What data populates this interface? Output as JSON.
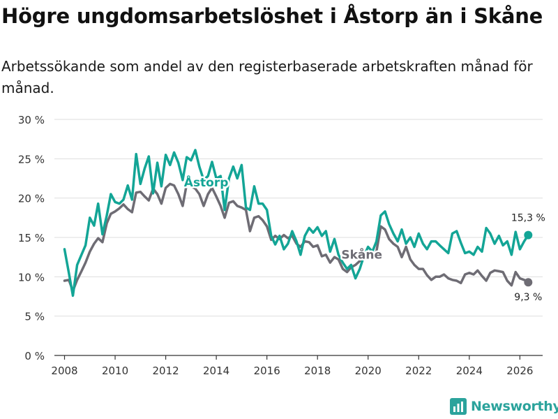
{
  "header": {
    "title": "Högre ungdomsarbetslöshet i Åstorp än i Skåne",
    "subtitle": "Arbetssökande som andel av den registerbaserade arbetskraften månad för månad."
  },
  "brand": {
    "name": "Newsworthy"
  },
  "colors": {
    "astorp": "#13a596",
    "skane": "#6e6c74",
    "grid": "#dedede",
    "axis": "#333333"
  },
  "chart_data": {
    "type": "line",
    "title": "Högre ungdomsarbetslöshet i Åstorp än i Skåne",
    "xlabel": "",
    "ylabel": "",
    "xlim": [
      2007.6,
      2026.9
    ],
    "ylim": [
      0,
      30
    ],
    "x_ticks": [
      2008,
      2010,
      2012,
      2014,
      2016,
      2018,
      2020,
      2022,
      2024,
      2026
    ],
    "y_ticks": [
      0,
      5,
      10,
      15,
      20,
      25,
      30
    ],
    "y_tick_labels": [
      "0 %",
      "5 %",
      "10 %",
      "15 %",
      "20 %",
      "25 %",
      "30 %"
    ],
    "grid": true,
    "series": [
      {
        "name": "Åstorp",
        "label": "Åstorp",
        "label_at": [
          2013.6,
          21.5
        ],
        "end_label": "15,3 %",
        "points": [
          [
            2008.0,
            13.5
          ],
          [
            2008.17,
            10.5
          ],
          [
            2008.33,
            7.6
          ],
          [
            2008.5,
            11.5
          ],
          [
            2008.67,
            12.8
          ],
          [
            2008.83,
            14.0
          ],
          [
            2009.0,
            17.5
          ],
          [
            2009.17,
            16.5
          ],
          [
            2009.33,
            19.3
          ],
          [
            2009.5,
            15.4
          ],
          [
            2009.67,
            17.8
          ],
          [
            2009.83,
            20.5
          ],
          [
            2010.0,
            19.5
          ],
          [
            2010.17,
            19.3
          ],
          [
            2010.33,
            19.8
          ],
          [
            2010.5,
            21.6
          ],
          [
            2010.67,
            19.8
          ],
          [
            2010.83,
            25.6
          ],
          [
            2011.0,
            21.8
          ],
          [
            2011.17,
            23.8
          ],
          [
            2011.33,
            25.3
          ],
          [
            2011.5,
            20.6
          ],
          [
            2011.67,
            24.5
          ],
          [
            2011.83,
            21.5
          ],
          [
            2012.0,
            25.5
          ],
          [
            2012.17,
            24.2
          ],
          [
            2012.33,
            25.8
          ],
          [
            2012.5,
            24.5
          ],
          [
            2012.67,
            22.3
          ],
          [
            2012.83,
            25.2
          ],
          [
            2013.0,
            24.8
          ],
          [
            2013.17,
            26.1
          ],
          [
            2013.33,
            24.0
          ],
          [
            2013.5,
            22.3
          ],
          [
            2013.67,
            22.8
          ],
          [
            2013.83,
            24.6
          ],
          [
            2014.0,
            22.5
          ],
          [
            2014.17,
            22.8
          ],
          [
            2014.33,
            18.5
          ],
          [
            2014.5,
            22.5
          ],
          [
            2014.67,
            24.0
          ],
          [
            2014.83,
            22.5
          ],
          [
            2015.0,
            24.2
          ],
          [
            2015.17,
            18.8
          ],
          [
            2015.33,
            18.5
          ],
          [
            2015.5,
            21.5
          ],
          [
            2015.67,
            19.3
          ],
          [
            2015.83,
            19.3
          ],
          [
            2016.0,
            18.5
          ],
          [
            2016.17,
            15.2
          ],
          [
            2016.33,
            14.1
          ],
          [
            2016.5,
            15.2
          ],
          [
            2016.67,
            13.5
          ],
          [
            2016.83,
            14.2
          ],
          [
            2017.0,
            15.8
          ],
          [
            2017.17,
            14.5
          ],
          [
            2017.33,
            12.8
          ],
          [
            2017.5,
            15.2
          ],
          [
            2017.67,
            16.2
          ],
          [
            2017.83,
            15.6
          ],
          [
            2018.0,
            16.3
          ],
          [
            2018.17,
            15.2
          ],
          [
            2018.33,
            15.8
          ],
          [
            2018.5,
            13.2
          ],
          [
            2018.67,
            14.8
          ],
          [
            2018.83,
            12.8
          ],
          [
            2019.0,
            11.8
          ],
          [
            2019.17,
            11.0
          ],
          [
            2019.33,
            11.5
          ],
          [
            2019.5,
            9.8
          ],
          [
            2019.67,
            11.0
          ],
          [
            2019.83,
            12.6
          ],
          [
            2020.0,
            13.8
          ],
          [
            2020.17,
            13.2
          ],
          [
            2020.33,
            14.5
          ],
          [
            2020.5,
            17.8
          ],
          [
            2020.67,
            18.3
          ],
          [
            2020.83,
            16.7
          ],
          [
            2021.0,
            15.5
          ],
          [
            2021.17,
            14.5
          ],
          [
            2021.33,
            16.0
          ],
          [
            2021.5,
            14.2
          ],
          [
            2021.67,
            15.0
          ],
          [
            2021.83,
            13.8
          ],
          [
            2022.0,
            15.5
          ],
          [
            2022.17,
            14.2
          ],
          [
            2022.33,
            13.5
          ],
          [
            2022.5,
            14.5
          ],
          [
            2022.67,
            14.5
          ],
          [
            2022.83,
            14.0
          ],
          [
            2023.0,
            13.5
          ],
          [
            2023.17,
            13.0
          ],
          [
            2023.33,
            15.5
          ],
          [
            2023.5,
            15.8
          ],
          [
            2023.67,
            14.3
          ],
          [
            2023.83,
            13.0
          ],
          [
            2024.0,
            13.2
          ],
          [
            2024.17,
            12.8
          ],
          [
            2024.33,
            13.8
          ],
          [
            2024.5,
            13.2
          ],
          [
            2024.67,
            16.2
          ],
          [
            2024.83,
            15.5
          ],
          [
            2025.0,
            14.2
          ],
          [
            2025.17,
            15.2
          ],
          [
            2025.33,
            14.0
          ],
          [
            2025.5,
            14.5
          ],
          [
            2025.67,
            12.8
          ],
          [
            2025.83,
            15.7
          ],
          [
            2026.0,
            13.5
          ],
          [
            2026.17,
            14.5
          ],
          [
            2026.33,
            15.3
          ]
        ]
      },
      {
        "name": "Skåne",
        "label": "Skåne",
        "label_at": [
          2019.75,
          12.3
        ],
        "end_label": "9,3 %",
        "points": [
          [
            2008.0,
            9.5
          ],
          [
            2008.17,
            9.6
          ],
          [
            2008.33,
            8.2
          ],
          [
            2008.5,
            9.6
          ],
          [
            2008.67,
            10.7
          ],
          [
            2008.83,
            11.8
          ],
          [
            2009.0,
            13.2
          ],
          [
            2009.17,
            14.2
          ],
          [
            2009.33,
            14.9
          ],
          [
            2009.5,
            14.4
          ],
          [
            2009.67,
            16.8
          ],
          [
            2009.83,
            18.0
          ],
          [
            2010.0,
            18.3
          ],
          [
            2010.17,
            18.7
          ],
          [
            2010.33,
            19.2
          ],
          [
            2010.5,
            18.6
          ],
          [
            2010.67,
            18.2
          ],
          [
            2010.83,
            20.7
          ],
          [
            2011.0,
            20.8
          ],
          [
            2011.17,
            20.2
          ],
          [
            2011.33,
            19.7
          ],
          [
            2011.5,
            21.2
          ],
          [
            2011.67,
            20.5
          ],
          [
            2011.83,
            19.3
          ],
          [
            2012.0,
            21.3
          ],
          [
            2012.17,
            21.8
          ],
          [
            2012.33,
            21.6
          ],
          [
            2012.5,
            20.5
          ],
          [
            2012.67,
            19.0
          ],
          [
            2012.83,
            21.8
          ],
          [
            2013.0,
            21.5
          ],
          [
            2013.17,
            21.2
          ],
          [
            2013.33,
            20.5
          ],
          [
            2013.5,
            19.0
          ],
          [
            2013.67,
            20.5
          ],
          [
            2013.83,
            21.3
          ],
          [
            2014.0,
            20.2
          ],
          [
            2014.17,
            19.0
          ],
          [
            2014.33,
            17.5
          ],
          [
            2014.5,
            19.4
          ],
          [
            2014.67,
            19.6
          ],
          [
            2014.83,
            19.0
          ],
          [
            2015.0,
            18.8
          ],
          [
            2015.17,
            18.5
          ],
          [
            2015.33,
            15.8
          ],
          [
            2015.5,
            17.5
          ],
          [
            2015.67,
            17.7
          ],
          [
            2015.83,
            17.2
          ],
          [
            2016.0,
            16.4
          ],
          [
            2016.17,
            14.7
          ],
          [
            2016.33,
            15.2
          ],
          [
            2016.5,
            14.8
          ],
          [
            2016.67,
            15.3
          ],
          [
            2016.83,
            14.9
          ],
          [
            2017.0,
            15.2
          ],
          [
            2017.17,
            14.2
          ],
          [
            2017.33,
            13.8
          ],
          [
            2017.5,
            14.5
          ],
          [
            2017.67,
            14.4
          ],
          [
            2017.83,
            13.8
          ],
          [
            2018.0,
            14.0
          ],
          [
            2018.17,
            12.6
          ],
          [
            2018.33,
            12.8
          ],
          [
            2018.5,
            11.8
          ],
          [
            2018.67,
            12.5
          ],
          [
            2018.83,
            12.2
          ],
          [
            2019.0,
            11.0
          ],
          [
            2019.17,
            10.6
          ],
          [
            2019.33,
            11.2
          ],
          [
            2019.5,
            11.5
          ],
          [
            2019.67,
            12.0
          ],
          [
            2019.83,
            12.4
          ],
          [
            2020.0,
            12.6
          ],
          [
            2020.17,
            12.8
          ],
          [
            2020.33,
            13.2
          ],
          [
            2020.5,
            16.4
          ],
          [
            2020.67,
            16.0
          ],
          [
            2020.83,
            14.8
          ],
          [
            2021.0,
            14.2
          ],
          [
            2021.17,
            13.8
          ],
          [
            2021.33,
            12.5
          ],
          [
            2021.5,
            13.8
          ],
          [
            2021.67,
            12.2
          ],
          [
            2021.83,
            11.5
          ],
          [
            2022.0,
            11.0
          ],
          [
            2022.17,
            11.0
          ],
          [
            2022.33,
            10.2
          ],
          [
            2022.5,
            9.6
          ],
          [
            2022.67,
            10.0
          ],
          [
            2022.83,
            10.0
          ],
          [
            2023.0,
            10.3
          ],
          [
            2023.17,
            9.8
          ],
          [
            2023.33,
            9.6
          ],
          [
            2023.5,
            9.5
          ],
          [
            2023.67,
            9.2
          ],
          [
            2023.83,
            10.3
          ],
          [
            2024.0,
            10.5
          ],
          [
            2024.17,
            10.3
          ],
          [
            2024.33,
            10.8
          ],
          [
            2024.5,
            10.1
          ],
          [
            2024.67,
            9.5
          ],
          [
            2024.83,
            10.5
          ],
          [
            2025.0,
            10.8
          ],
          [
            2025.17,
            10.7
          ],
          [
            2025.33,
            10.6
          ],
          [
            2025.5,
            9.5
          ],
          [
            2025.67,
            8.9
          ],
          [
            2025.83,
            10.6
          ],
          [
            2026.0,
            9.8
          ],
          [
            2026.17,
            9.6
          ],
          [
            2026.33,
            9.3
          ]
        ]
      }
    ]
  }
}
